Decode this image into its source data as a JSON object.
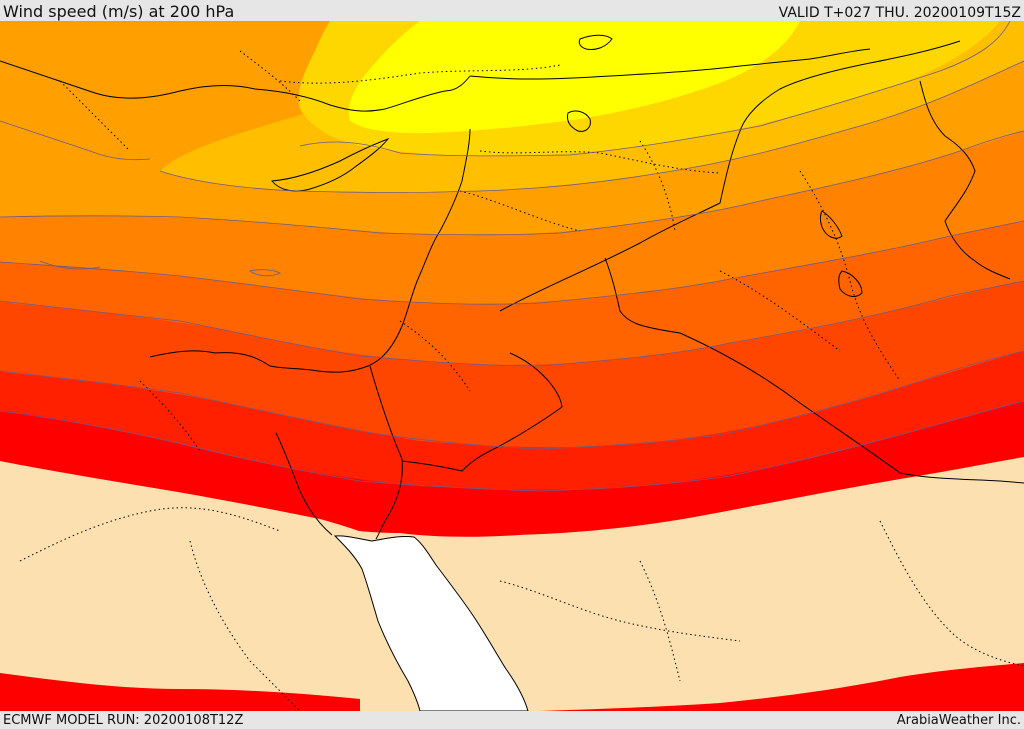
{
  "header": {
    "title": "Wind speed (m/s) at 200 hPa",
    "valid": "VALID T+027 THU. 20200109T15Z"
  },
  "footer": {
    "model_run": "ECMWF MODEL RUN: 20200108T12Z",
    "credit": "ArabiaWeather Inc."
  },
  "map": {
    "field": "wind-speed",
    "colors": {
      "band_yellow": "#ffff00",
      "band_gold": "#ffd700",
      "band_amber": "#ffbe00",
      "band_orange": "#ffa000",
      "band_dark_orange": "#ff8200",
      "band_red_orange": "#ff6400",
      "band_orange_red": "#ff4600",
      "band_red": "#ff2000",
      "band_pure_red": "#ff0000",
      "low_wind": "#fde0b0",
      "sea": "#ffffff",
      "coast": "#000000"
    }
  }
}
